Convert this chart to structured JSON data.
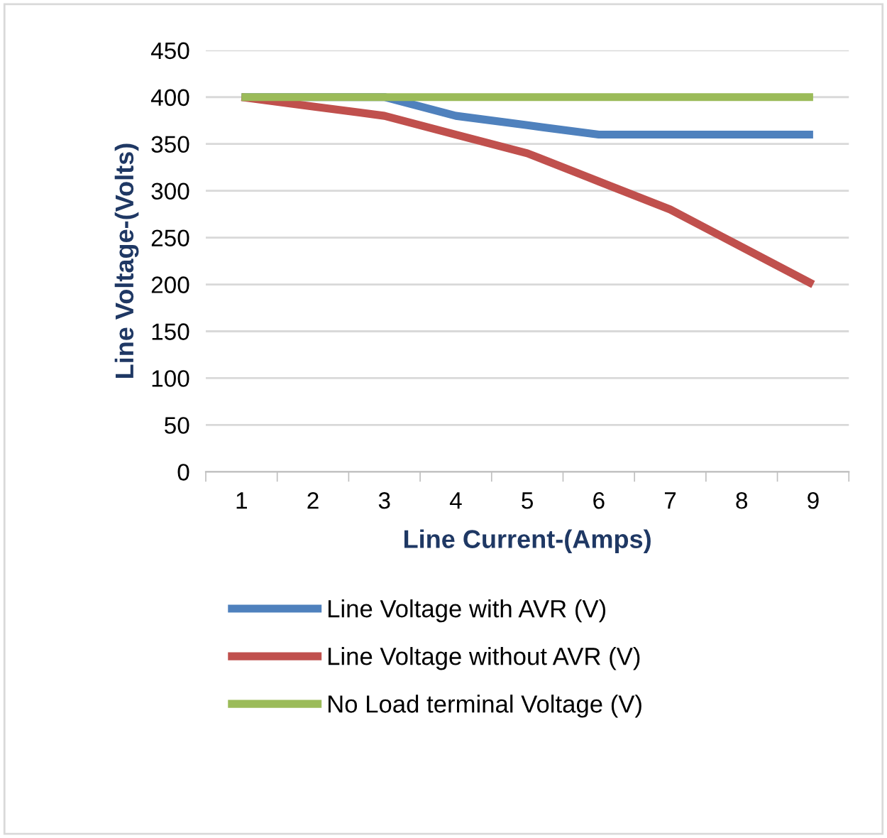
{
  "chart_data": {
    "type": "line",
    "xlabel": "Line Current-(Amps)",
    "ylabel": "Line Voltage-(Volts)",
    "categories": [
      "1",
      "2",
      "3",
      "4",
      "5",
      "6",
      "7",
      "8",
      "9"
    ],
    "series": [
      {
        "name": "Line Voltage with AVR (V)",
        "color": "#4f81bd",
        "values": [
          400,
          400,
          400,
          380,
          370,
          360,
          360,
          360,
          360
        ]
      },
      {
        "name": "Line Voltage without AVR (V)",
        "color": "#c0504d",
        "values": [
          400,
          390,
          380,
          360,
          340,
          310,
          280,
          240,
          200
        ]
      },
      {
        "name": "No Load terminal Voltage (V)",
        "color": "#9bbb59",
        "values": [
          400,
          400,
          400,
          400,
          400,
          400,
          400,
          400,
          400
        ]
      }
    ],
    "ylim": [
      0,
      450
    ],
    "yticks": [
      0,
      50,
      100,
      150,
      200,
      250,
      300,
      350,
      400,
      450
    ],
    "grid": "y",
    "legend": "bottom",
    "marker": "none",
    "line_style": "solid"
  }
}
